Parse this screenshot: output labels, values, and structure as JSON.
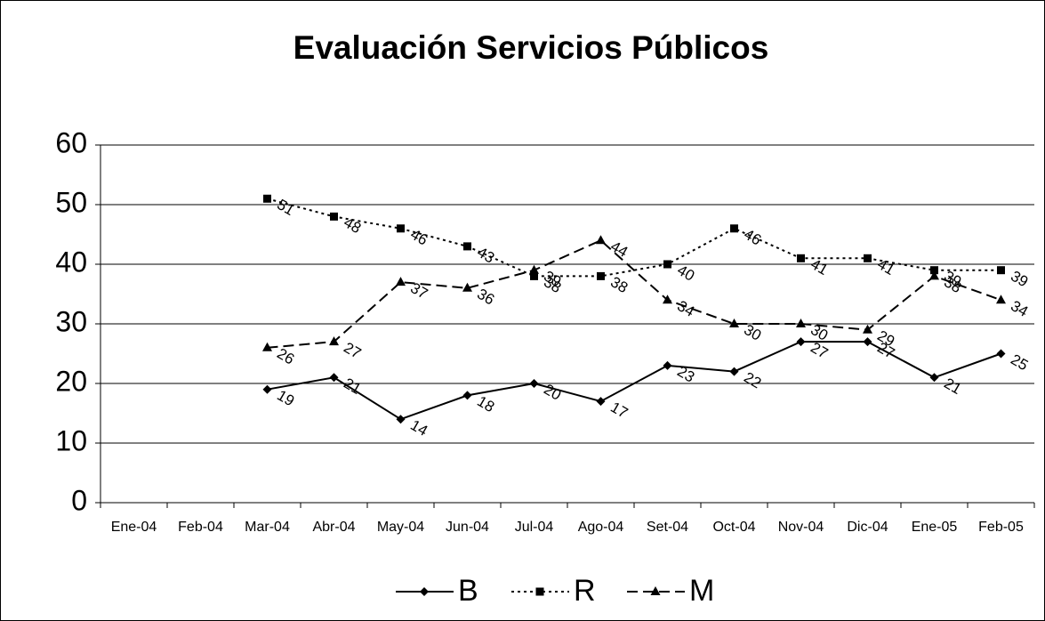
{
  "chart_data": {
    "type": "line",
    "title": "Evaluación Servicios Públicos",
    "categories": [
      "Ene-04",
      "Feb-04",
      "Mar-04",
      "Abr-04",
      "May-04",
      "Jun-04",
      "Jul-04",
      "Ago-04",
      "Set-04",
      "Oct-04",
      "Nov-04",
      "Dic-04",
      "Ene-05",
      "Feb-05"
    ],
    "series": [
      {
        "name": "B",
        "color": "#000000",
        "marker": "diamond",
        "line_style": "solid",
        "values": [
          null,
          null,
          19,
          21,
          14,
          18,
          20,
          17,
          23,
          22,
          27,
          27,
          21,
          25
        ]
      },
      {
        "name": "R",
        "color": "#000000",
        "marker": "square",
        "line_style": "dotted",
        "values": [
          null,
          null,
          51,
          48,
          46,
          43,
          38,
          38,
          40,
          46,
          41,
          41,
          39,
          39
        ]
      },
      {
        "name": "M",
        "color": "#000000",
        "marker": "triangle",
        "line_style": "dashed",
        "values": [
          null,
          null,
          26,
          27,
          37,
          36,
          39,
          44,
          34,
          30,
          30,
          29,
          38,
          34
        ]
      }
    ],
    "ylim": [
      0,
      60
    ],
    "yticks": [
      0,
      10,
      20,
      30,
      40,
      50,
      60
    ],
    "grid": true,
    "legend": "bottom",
    "data_labels": true
  }
}
